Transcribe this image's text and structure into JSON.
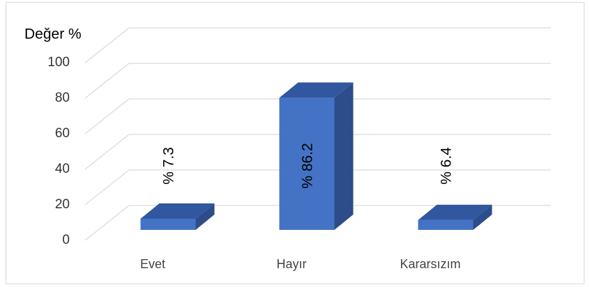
{
  "chart_data": {
    "type": "bar3d",
    "y_label": "Değer %",
    "categories": [
      "Evet",
      "Hayır",
      "Kararsızım"
    ],
    "values": [
      7.3,
      86.2,
      6.4
    ],
    "value_labels": [
      "% 7.3",
      "% 86.2",
      "% 6.4"
    ],
    "color": "#4472c4",
    "ylim": [
      0,
      100
    ],
    "yticks": [
      0,
      20,
      40,
      60,
      80,
      100
    ],
    "grid": true
  }
}
